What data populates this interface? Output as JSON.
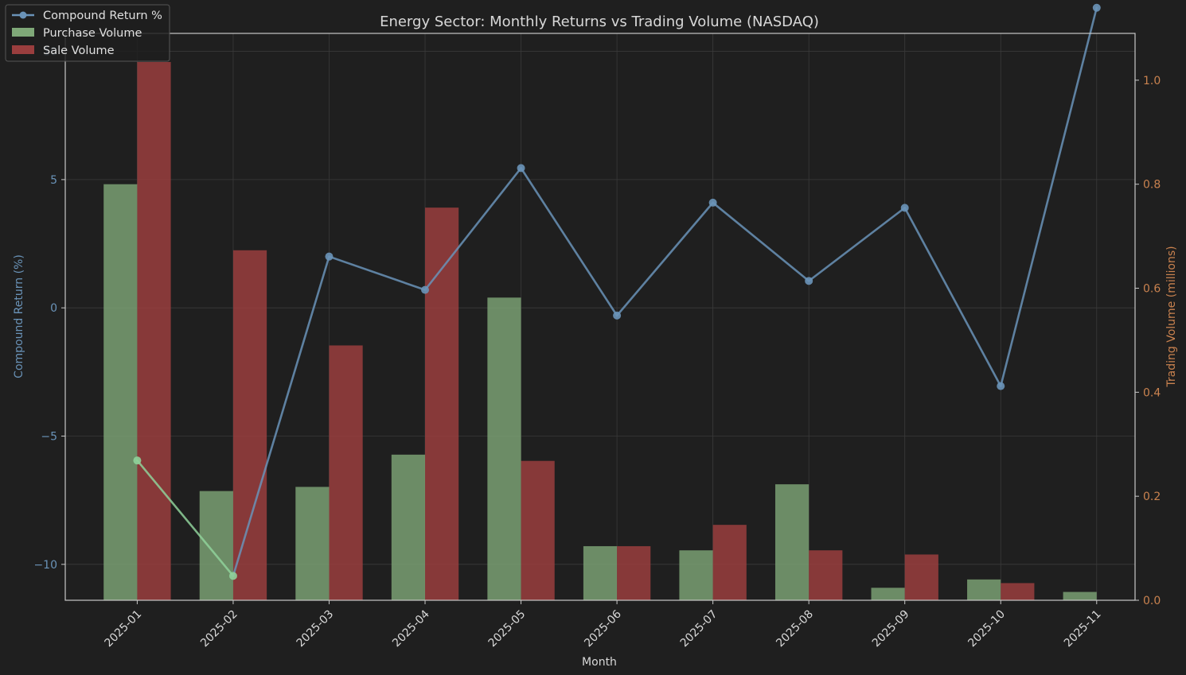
{
  "colors": {
    "background": "#1f1f1f",
    "grid": "#3a3a3a",
    "frame": "#c8c8c8",
    "purchase": "#7fa878",
    "sale": "#9a3e3e",
    "line": "#6a93b8",
    "line_negative": "#8fd19a",
    "left_axis": "#6a93b8",
    "right_axis": "#c9824f",
    "text": "#d8d8d8"
  },
  "chart_data": {
    "type": "bar",
    "title": "Energy Sector: Monthly Returns vs Trading Volume (NASDAQ)",
    "xlabel": "Month",
    "ylabel_left": "Compound Return (%)",
    "ylabel_right": "Trading Volume (millions)",
    "categories": [
      "2025-01",
      "2025-02",
      "2025-03",
      "2025-04",
      "2025-05",
      "2025-06",
      "2025-07",
      "2025-08",
      "2025-09",
      "2025-10",
      "2025-11"
    ],
    "ylim_left": [
      -11.4,
      10.7
    ],
    "yticks_left": [
      -10,
      -5,
      0,
      5,
      10
    ],
    "ylim_right": [
      0,
      1.09
    ],
    "yticks_right": [
      0.0,
      0.2,
      0.4,
      0.6,
      0.8,
      1.0
    ],
    "grid": true,
    "legend_position": "top-left",
    "series": [
      {
        "name": "Compound Return %",
        "type": "line",
        "axis": "left",
        "values": [
          -5.95,
          -10.45,
          2.0,
          0.7,
          5.45,
          -0.3,
          4.1,
          1.05,
          3.9,
          -3.05,
          11.7
        ]
      },
      {
        "name": "Purchase Volume",
        "type": "bar",
        "axis": "right",
        "values": [
          0.8,
          0.21,
          0.218,
          0.28,
          0.582,
          0.104,
          0.096,
          0.223,
          0.024,
          0.04,
          0.016
        ]
      },
      {
        "name": "Sale Volume",
        "type": "bar",
        "axis": "right",
        "values": [
          1.035,
          0.673,
          0.49,
          0.755,
          0.268,
          0.104,
          0.145,
          0.096,
          0.088,
          0.033,
          0.0
        ]
      }
    ]
  }
}
